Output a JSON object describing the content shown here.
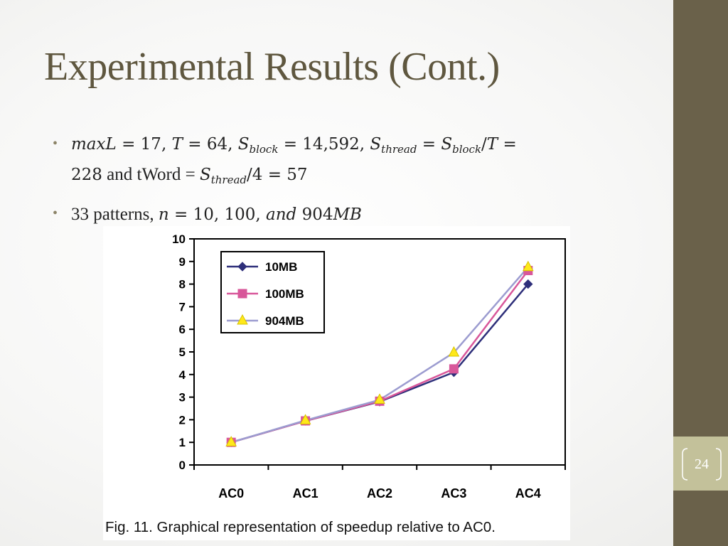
{
  "slide": {
    "title": "Experimental Results (Cont.)",
    "page_number": "24",
    "caption": "Fig. 11. Graphical representation of speedup relative to AC0.",
    "bullets": [
      {
        "line1": {
          "a": "maxL",
          "b": " = 17, ",
          "c": "T",
          "d": " = 64, ",
          "e": "S",
          "f": "block",
          "g": " = 14,592, ",
          "h": "S",
          "i": "thread",
          "j": " = ",
          "k": "S",
          "l": "block",
          "m": "/",
          "n": "T",
          "o": " ="
        },
        "line2": {
          "a": "228",
          "b": " and tWord = ",
          "c": "S",
          "d": "thread",
          "e": "/4 = 57"
        }
      },
      {
        "a": "33 patterns, ",
        "b": "n",
        "c": " = 10, 100, ",
        "d": "and",
        "e": " 904",
        "f": "MB"
      }
    ]
  },
  "colors": {
    "accent": "#6a614a",
    "accent_light": "#c3c19a",
    "title": "#5f573f"
  },
  "chart_data": {
    "type": "line",
    "title": "",
    "xlabel": "",
    "ylabel": "",
    "categories": [
      "AC0",
      "AC1",
      "AC2",
      "AC3",
      "AC4"
    ],
    "y_ticks": [
      "0",
      "1",
      "2",
      "3",
      "4",
      "5",
      "6",
      "7",
      "8",
      "9",
      "10"
    ],
    "ylim": [
      0,
      10
    ],
    "grid": false,
    "legend": "top-left",
    "series": [
      {
        "name": "10MB",
        "values": [
          1,
          1.95,
          2.8,
          4.1,
          8.0
        ],
        "color": "#2e2f7a",
        "marker": "diamond"
      },
      {
        "name": "100MB",
        "values": [
          1,
          1.95,
          2.82,
          4.25,
          8.6
        ],
        "color": "#d8579a",
        "marker": "square"
      },
      {
        "name": "904MB",
        "values": [
          1,
          1.97,
          2.88,
          4.97,
          8.75
        ],
        "color": "#9c9cd0",
        "marker": "triangle",
        "marker_color": "#ffe81a"
      }
    ]
  }
}
